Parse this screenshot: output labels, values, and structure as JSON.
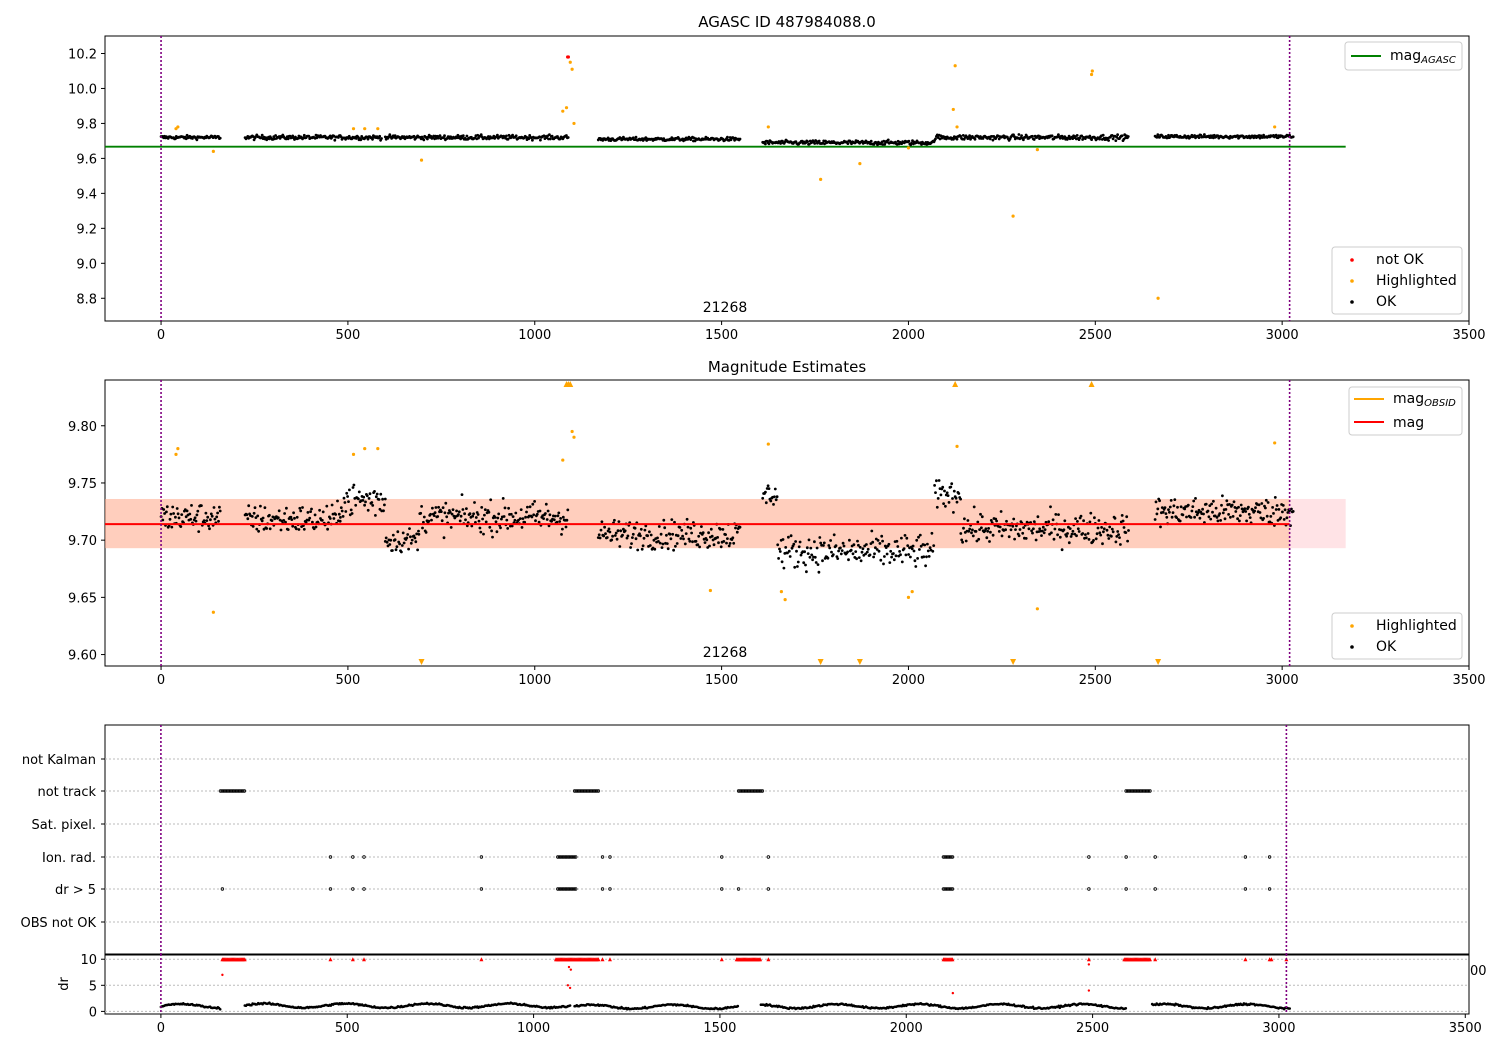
{
  "chart_data": [
    {
      "id": "agasc",
      "type": "scatter",
      "title": "AGASC ID 487984088.0",
      "xlabel": "",
      "ylabel": "",
      "xlim": [
        -150,
        3500
      ],
      "ylim": [
        8.67,
        10.3
      ],
      "xticks": [
        0,
        500,
        1000,
        1500,
        2000,
        2500,
        3000,
        3500
      ],
      "yticks": [
        8.8,
        9.0,
        9.2,
        9.4,
        9.6,
        9.8,
        10.0,
        10.2
      ],
      "ytick_labels": [
        "8.8",
        "9.0",
        "9.2",
        "9.4",
        "9.6",
        "9.8",
        "10.0",
        "10.2"
      ],
      "vlines": [
        0,
        3020
      ],
      "hline": {
        "name": "mag_AGASC",
        "y": 9.667,
        "x": [
          -150,
          3170
        ],
        "color": "#008000"
      },
      "annotation": {
        "text": "21268",
        "x": 1510,
        "y": 8.72
      },
      "legend_top": {
        "main": "mag",
        "sub": "AGASC",
        "color": "#008000",
        "position": "top-right"
      },
      "legend_bottom": [
        {
          "label": "not OK",
          "color": "#ff0000"
        },
        {
          "label": "Highlighted",
          "color": "#ffa500"
        },
        {
          "label": "OK",
          "color": "#000000"
        }
      ],
      "segments": [
        {
          "x": [
            0,
            160
          ],
          "y": 9.72,
          "noise": 0.01
        },
        {
          "x": [
            225,
            590
          ],
          "y": 9.72,
          "noise": 0.012
        },
        {
          "x": [
            600,
            1090
          ],
          "y": 9.72,
          "noise": 0.012
        },
        {
          "x": [
            1170,
            1550
          ],
          "y": 9.71,
          "noise": 0.01
        },
        {
          "x": [
            1610,
            2070
          ],
          "y": 9.69,
          "noise": 0.012
        },
        {
          "x": [
            2070,
            2590
          ],
          "y": 9.72,
          "noise": 0.014
        },
        {
          "x": [
            2660,
            3030
          ],
          "y": 9.725,
          "noise": 0.01
        }
      ],
      "highlighted": [
        [
          40,
          9.77
        ],
        [
          45,
          9.78
        ],
        [
          140,
          9.64
        ],
        [
          515,
          9.77
        ],
        [
          545,
          9.77
        ],
        [
          580,
          9.77
        ],
        [
          697,
          9.59
        ],
        [
          1075,
          9.87
        ],
        [
          1085,
          9.89
        ],
        [
          1095,
          10.15
        ],
        [
          1100,
          10.11
        ],
        [
          1105,
          9.8
        ],
        [
          1625,
          9.78
        ],
        [
          1765,
          9.48
        ],
        [
          1870,
          9.57
        ],
        [
          2000,
          9.66
        ],
        [
          2120,
          9.88
        ],
        [
          2125,
          10.13
        ],
        [
          2130,
          9.78
        ],
        [
          2280,
          9.27
        ],
        [
          2345,
          9.65
        ],
        [
          2490,
          10.08
        ],
        [
          2492,
          10.1
        ],
        [
          2668,
          8.8
        ],
        [
          2980,
          9.78
        ]
      ],
      "not_ok": [
        [
          1088,
          10.18
        ],
        [
          1090,
          10.18
        ]
      ]
    },
    {
      "id": "magest",
      "type": "scatter",
      "title": "Magnitude Estimates",
      "xlabel": "",
      "ylabel": "",
      "xlim": [
        -150,
        3500
      ],
      "ylim": [
        9.59,
        9.84
      ],
      "xticks": [
        0,
        500,
        1000,
        1500,
        2000,
        2500,
        3000,
        3500
      ],
      "yticks": [
        9.6,
        9.65,
        9.7,
        9.75,
        9.8
      ],
      "ytick_labels": [
        "9.60",
        "9.65",
        "9.70",
        "9.75",
        "9.80"
      ],
      "vlines": [
        0,
        3020
      ],
      "mag_line": {
        "name": "mag",
        "y": 9.714,
        "x": [
          -150,
          3020
        ],
        "color": "#ff0000"
      },
      "band": {
        "y": [
          9.693,
          9.736
        ],
        "x": [
          -150,
          3170
        ],
        "color": "#ffb0b8"
      },
      "band_obsid": {
        "y": [
          9.693,
          9.736
        ],
        "x": [
          -150,
          3020
        ],
        "color": "#ffa060"
      },
      "annotation": {
        "text": "21268",
        "x": 1510,
        "y": 9.597
      },
      "legend_top": [
        {
          "main": "mag",
          "sub": "OBSID",
          "color": "#ffa500"
        },
        {
          "main": "mag",
          "sub": "",
          "color": "#ff0000"
        }
      ],
      "legend_bottom": [
        {
          "label": "Highlighted",
          "color": "#ffa500"
        },
        {
          "label": "OK",
          "color": "#000000"
        }
      ],
      "segments": [
        {
          "x": [
            0,
            160
          ],
          "y": 9.72,
          "noise": 0.012
        },
        {
          "x": [
            225,
            480
          ],
          "y": 9.718,
          "noise": 0.012
        },
        {
          "x": [
            480,
            600
          ],
          "y": 9.735,
          "noise": 0.015
        },
        {
          "x": [
            600,
            690
          ],
          "y": 9.7,
          "noise": 0.01
        },
        {
          "x": [
            690,
            1090
          ],
          "y": 9.72,
          "noise": 0.013
        },
        {
          "x": [
            1170,
            1550
          ],
          "y": 9.705,
          "noise": 0.012
        },
        {
          "x": [
            1610,
            1650
          ],
          "y": 9.74,
          "noise": 0.01
        },
        {
          "x": [
            1650,
            2070
          ],
          "y": 9.69,
          "noise": 0.014
        },
        {
          "x": [
            2070,
            2140
          ],
          "y": 9.74,
          "noise": 0.012
        },
        {
          "x": [
            2140,
            2590
          ],
          "y": 9.71,
          "noise": 0.013
        },
        {
          "x": [
            2660,
            3030
          ],
          "y": 9.725,
          "noise": 0.012
        }
      ],
      "highlighted": [
        [
          40,
          9.775
        ],
        [
          45,
          9.78
        ],
        [
          140,
          9.637
        ],
        [
          515,
          9.775
        ],
        [
          545,
          9.78
        ],
        [
          580,
          9.78
        ],
        [
          1075,
          9.77
        ],
        [
          1100,
          9.795
        ],
        [
          1105,
          9.79
        ],
        [
          1470,
          9.656
        ],
        [
          1625,
          9.784
        ],
        [
          1660,
          9.655
        ],
        [
          1670,
          9.648
        ],
        [
          2000,
          9.65
        ],
        [
          2010,
          9.655
        ],
        [
          2130,
          9.782
        ],
        [
          2345,
          9.64
        ],
        [
          2980,
          9.785
        ]
      ],
      "markers_up": [
        1085,
        1090,
        1095,
        2125,
        2490
      ],
      "markers_down": [
        697,
        1765,
        1870,
        2280,
        2668
      ]
    },
    {
      "id": "flags",
      "type": "scatter",
      "title": "",
      "xlim": [
        -150,
        3510
      ],
      "categories": [
        "not Kalman",
        "not track",
        "Sat. pixel.",
        "Ion. rad.",
        "dr > 5",
        "OBS not OK"
      ],
      "vlines": [
        0,
        3020
      ],
      "rows": {
        "not Kalman": {
          "points": [],
          "ranges": []
        },
        "not track": {
          "points": [],
          "ranges": [
            [
              160,
              225
            ],
            [
              1110,
              1175
            ],
            [
              1550,
              1615
            ],
            [
              2590,
              2655
            ]
          ]
        },
        "Sat. pixel.": {
          "points": [],
          "ranges": []
        },
        "Ion. rad.": {
          "points": [
            455,
            515,
            545,
            860,
            1185,
            1205,
            1505,
            1630,
            2490,
            2590,
            2668,
            2910,
            2975
          ],
          "ranges": [
            [
              1065,
              1115
            ],
            [
              2100,
              2125
            ]
          ]
        },
        "dr > 5": {
          "points": [
            165,
            455,
            515,
            545,
            860,
            1185,
            1205,
            1505,
            1550,
            1630,
            2490,
            2590,
            2668,
            2910,
            2975
          ],
          "ranges": [
            [
              1065,
              1115
            ],
            [
              2100,
              2125
            ]
          ]
        },
        "OBS not OK": {
          "points": [],
          "ranges": []
        }
      }
    },
    {
      "id": "dr",
      "type": "scatter",
      "ylabel": "dr",
      "xlim": [
        -150,
        3510
      ],
      "ylim": [
        -0.5,
        11
      ],
      "xticks": [
        0,
        500,
        1000,
        1500,
        2000,
        2500,
        3000,
        3500
      ],
      "yticks": [
        0,
        5,
        10
      ],
      "ytick_labels": [
        "0",
        "5",
        "10"
      ],
      "right_label": "00",
      "vlines": [
        0,
        3020
      ],
      "segments": [
        {
          "x": [
            0,
            160
          ],
          "y": 1.0
        },
        {
          "x": [
            225,
            1100
          ],
          "y": 1.1
        },
        {
          "x": [
            1110,
            1550
          ],
          "y": 0.9
        },
        {
          "x": [
            1610,
            2070
          ],
          "y": 1.0
        },
        {
          "x": [
            2070,
            2590
          ],
          "y": 1.0
        },
        {
          "x": [
            2660,
            3030
          ],
          "y": 1.0
        }
      ],
      "capped_ranges": [
        [
          165,
          225
        ],
        [
          1060,
          1175
        ],
        [
          1545,
          1610
        ],
        [
          2100,
          2125
        ],
        [
          2585,
          2655
        ]
      ],
      "capped_points": [
        455,
        515,
        545,
        860,
        1185,
        1205,
        1505,
        1630,
        2490,
        2668,
        2910,
        2975,
        2980,
        3020
      ],
      "red_points": [
        [
          165,
          7.0
        ],
        [
          1095,
          8.5
        ],
        [
          1100,
          8.0
        ],
        [
          1092,
          5.0
        ],
        [
          1098,
          4.5
        ],
        [
          2125,
          3.5
        ],
        [
          2490,
          4.0
        ],
        [
          2490,
          9.0
        ]
      ]
    }
  ]
}
